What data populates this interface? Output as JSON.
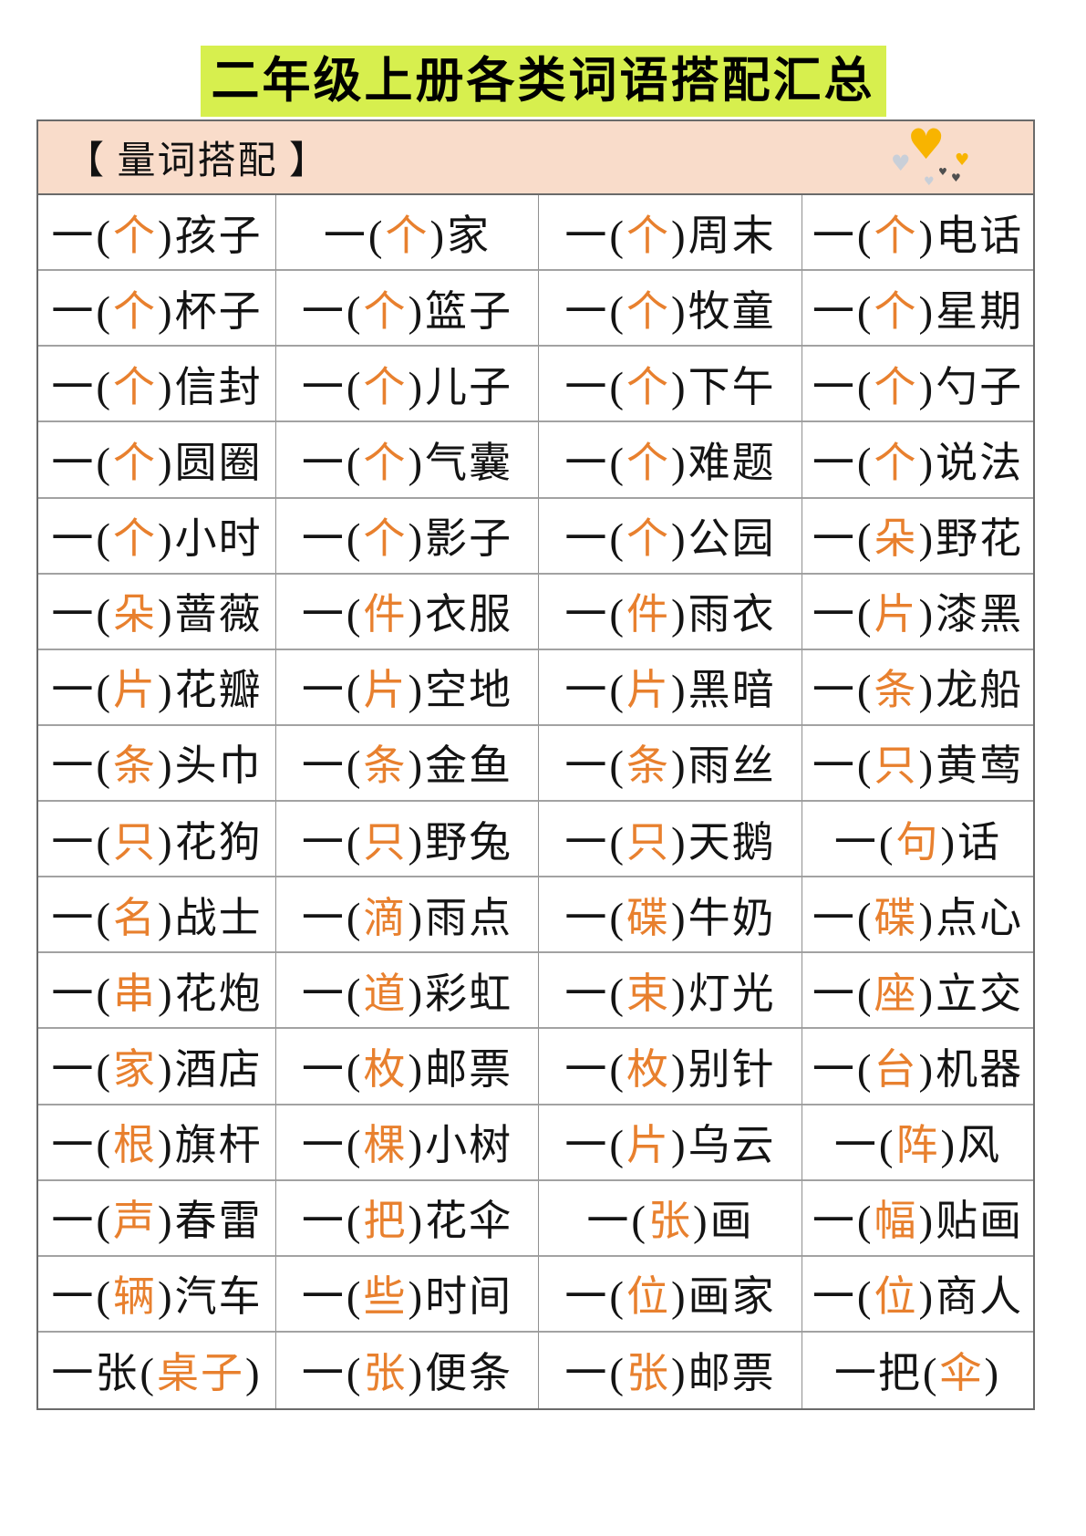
{
  "title": "二年级上册各类词语搭配汇总",
  "section": {
    "label": "【 量词搭配 】"
  },
  "icons": {
    "heart": "♥"
  },
  "colors": {
    "title_highlight": "#d7ef4e",
    "header_background": "#f9dcca",
    "accent_orange": "#e8802e",
    "heart_gold": "#f8b400",
    "heart_gray": "#c9cfd8",
    "heart_dark": "#4f4f4f",
    "border_gray": "#6a6a6a"
  },
  "table": {
    "rows": [
      [
        {
          "before": "一",
          "measure": "个",
          "after": "孩子"
        },
        {
          "before": "一",
          "measure": "个",
          "after": "家"
        },
        {
          "before": "一",
          "measure": "个",
          "after": "周末"
        },
        {
          "before": "一",
          "measure": "个",
          "after": "电话"
        }
      ],
      [
        {
          "before": "一",
          "measure": "个",
          "after": "杯子"
        },
        {
          "before": "一",
          "measure": "个",
          "after": "篮子"
        },
        {
          "before": "一",
          "measure": "个",
          "after": "牧童"
        },
        {
          "before": "一",
          "measure": "个",
          "after": "星期"
        }
      ],
      [
        {
          "before": "一",
          "measure": "个",
          "after": "信封"
        },
        {
          "before": "一",
          "measure": "个",
          "after": "儿子"
        },
        {
          "before": "一",
          "measure": "个",
          "after": "下午"
        },
        {
          "before": "一",
          "measure": "个",
          "after": "勺子"
        }
      ],
      [
        {
          "before": "一",
          "measure": "个",
          "after": "圆圈"
        },
        {
          "before": "一",
          "measure": "个",
          "after": "气囊"
        },
        {
          "before": "一",
          "measure": "个",
          "after": "难题"
        },
        {
          "before": "一",
          "measure": "个",
          "after": "说法"
        }
      ],
      [
        {
          "before": "一",
          "measure": "个",
          "after": "小时"
        },
        {
          "before": "一",
          "measure": "个",
          "after": "影子"
        },
        {
          "before": "一",
          "measure": "个",
          "after": "公园"
        },
        {
          "before": "一",
          "measure": "朵",
          "after": "野花"
        }
      ],
      [
        {
          "before": "一",
          "measure": "朵",
          "after": "蔷薇"
        },
        {
          "before": "一",
          "measure": "件",
          "after": "衣服"
        },
        {
          "before": "一",
          "measure": "件",
          "after": "雨衣"
        },
        {
          "before": "一",
          "measure": "片",
          "after": "漆黑"
        }
      ],
      [
        {
          "before": "一",
          "measure": "片",
          "after": "花瓣"
        },
        {
          "before": "一",
          "measure": "片",
          "after": "空地"
        },
        {
          "before": "一",
          "measure": "片",
          "after": "黑暗"
        },
        {
          "before": "一",
          "measure": "条",
          "after": "龙船"
        }
      ],
      [
        {
          "before": "一",
          "measure": "条",
          "after": "头巾"
        },
        {
          "before": "一",
          "measure": "条",
          "after": "金鱼"
        },
        {
          "before": "一",
          "measure": "条",
          "after": "雨丝"
        },
        {
          "before": "一",
          "measure": "只",
          "after": "黄莺"
        }
      ],
      [
        {
          "before": "一",
          "measure": "只",
          "after": "花狗"
        },
        {
          "before": "一",
          "measure": "只",
          "after": "野兔"
        },
        {
          "before": "一",
          "measure": "只",
          "after": "天鹅"
        },
        {
          "before": "一",
          "measure": "句",
          "after": "话"
        }
      ],
      [
        {
          "before": "一",
          "measure": "名",
          "after": "战士"
        },
        {
          "before": "一",
          "measure": "滴",
          "after": "雨点"
        },
        {
          "before": "一",
          "measure": "碟",
          "after": "牛奶"
        },
        {
          "before": "一",
          "measure": "碟",
          "after": "点心"
        }
      ],
      [
        {
          "before": "一",
          "measure": "串",
          "after": "花炮"
        },
        {
          "before": "一",
          "measure": "道",
          "after": "彩虹"
        },
        {
          "before": "一",
          "measure": "束",
          "after": "灯光"
        },
        {
          "before": "一",
          "measure": "座",
          "after": "立交"
        }
      ],
      [
        {
          "before": "一",
          "measure": "家",
          "after": "酒店"
        },
        {
          "before": "一",
          "measure": "枚",
          "after": "邮票"
        },
        {
          "before": "一",
          "measure": "枚",
          "after": "别针"
        },
        {
          "before": "一",
          "measure": "台",
          "after": "机器"
        }
      ],
      [
        {
          "before": "一",
          "measure": "根",
          "after": "旗杆"
        },
        {
          "before": "一",
          "measure": "棵",
          "after": "小树"
        },
        {
          "before": "一",
          "measure": "片",
          "after": "乌云"
        },
        {
          "before": "一",
          "measure": "阵",
          "after": "风"
        }
      ],
      [
        {
          "before": "一",
          "measure": "声",
          "after": "春雷"
        },
        {
          "before": "一",
          "measure": "把",
          "after": "花伞"
        },
        {
          "before": "一",
          "measure": "张",
          "after": "画"
        },
        {
          "before": "一",
          "measure": "幅",
          "after": "贴画"
        }
      ],
      [
        {
          "before": "一",
          "measure": "辆",
          "after": "汽车"
        },
        {
          "before": "一",
          "measure": "些",
          "after": "时间"
        },
        {
          "before": "一",
          "measure": "位",
          "after": "画家"
        },
        {
          "before": "一",
          "measure": "位",
          "after": "商人"
        }
      ],
      [
        {
          "before": "一张",
          "measure": "桌子",
          "after": ""
        },
        {
          "before": "一",
          "measure": "张",
          "after": "便条"
        },
        {
          "before": "一",
          "measure": "张",
          "after": "邮票"
        },
        {
          "before": "一把",
          "measure": "伞",
          "after": ""
        }
      ]
    ]
  }
}
